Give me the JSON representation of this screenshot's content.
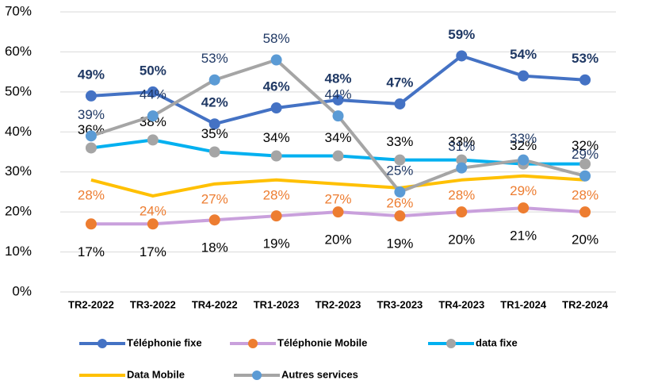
{
  "chart_data": {
    "type": "line",
    "categories": [
      "TR2-2022",
      "TR3-2022",
      "TR4-2022",
      "TR1-2023",
      "TR2-2023",
      "TR3-2023",
      "TR4-2023",
      "TR1-2024",
      "TR2-2024"
    ],
    "ylim": [
      0,
      70
    ],
    "yticks": [
      {
        "value": 0,
        "label": "0%"
      },
      {
        "value": 10,
        "label": "10%"
      },
      {
        "value": 20,
        "label": "20%"
      },
      {
        "value": 30,
        "label": "30%"
      },
      {
        "value": 40,
        "label": "40%"
      },
      {
        "value": 50,
        "label": "50%"
      },
      {
        "value": 60,
        "label": "60%"
      },
      {
        "value": 70,
        "label": "70%"
      }
    ],
    "grid": true,
    "legend": "bottom",
    "series": [
      {
        "name": "Téléphonie fixe",
        "color": "#4472c4",
        "marker_color": "#4472c4",
        "label_color": "#1f3864",
        "label_weight": "bold",
        "values": [
          49,
          50,
          42,
          46,
          48,
          47,
          59,
          54,
          53
        ],
        "value_labels": [
          "49%",
          "50%",
          "42%",
          "46%",
          "48%",
          "47%",
          "59%",
          "54%",
          "53%"
        ]
      },
      {
        "name": "Téléphonie Mobile",
        "color": "#c9a0dc",
        "marker_color": "#ed7d31",
        "label_color": "#000000",
        "values": [
          17,
          17,
          18,
          19,
          20,
          19,
          20,
          21,
          20
        ],
        "value_labels": [
          "17%",
          "17%",
          "18%",
          "19%",
          "20%",
          "19%",
          "20%",
          "21%",
          "20%"
        ]
      },
      {
        "name": "data fixe",
        "color": "#00b0f0",
        "marker_color": "#a5a5a5",
        "label_color": "#000000",
        "values": [
          36,
          38,
          35,
          34,
          34,
          33,
          33,
          32,
          32
        ],
        "value_labels": [
          "36%",
          "38%",
          "35%",
          "34%",
          "34%",
          "33%",
          "33%",
          "32%",
          "32%"
        ]
      },
      {
        "name": "Data Mobile",
        "color": "#ffc000",
        "label_color": "#ed7d31",
        "values": [
          28,
          24,
          27,
          28,
          27,
          26,
          28,
          29,
          28
        ],
        "value_labels": [
          "28%",
          "24%",
          "27%",
          "28%",
          "27%",
          "26%",
          "28%",
          "29%",
          "28%"
        ]
      },
      {
        "name": "Autres services",
        "color": "#a5a5a5",
        "marker_color": "#5b9bd5",
        "label_color": "#1f3864",
        "values": [
          39,
          44,
          53,
          58,
          44,
          25,
          31,
          33,
          29
        ],
        "value_labels": [
          "39%",
          "44%",
          "53%",
          "58%",
          "44%",
          "25%",
          "31%",
          "33%",
          "29%"
        ]
      }
    ]
  }
}
